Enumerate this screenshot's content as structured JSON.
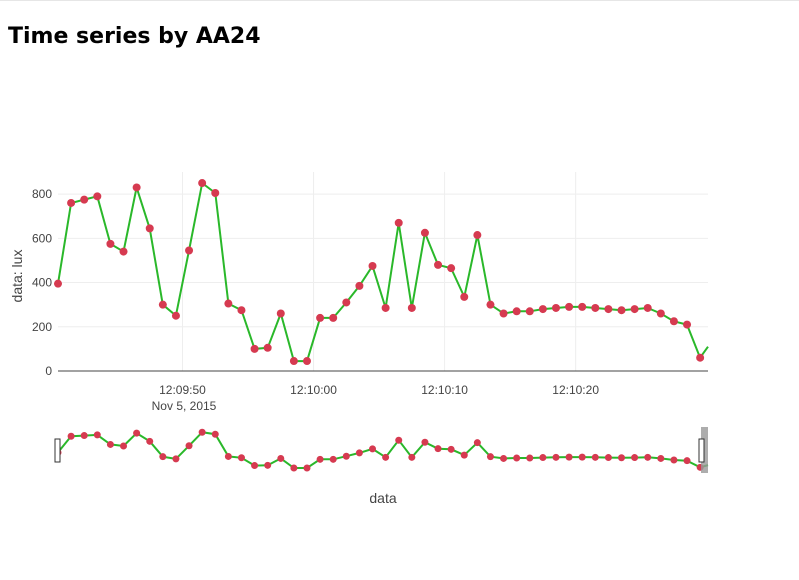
{
  "page": {
    "title": "Time series by AA24"
  },
  "chart_data": {
    "type": "line",
    "title": "",
    "xlabel": "data",
    "ylabel": "data: lux",
    "ylim": [
      0,
      900
    ],
    "x_range_seconds": [
      "12:09:40.5",
      "12:10:30.1"
    ],
    "x_date_label": "Nov 5, 2015",
    "x_ticks": [
      "12:09:50",
      "12:10:00",
      "12:10:10",
      "12:10:20"
    ],
    "y_ticks": [
      0,
      200,
      400,
      600,
      800
    ],
    "grid": true,
    "legend": "none",
    "range_slider": true,
    "line_color": "#2ab82a",
    "marker_color": "#d63a50",
    "x": [
      "2015-11-05 12:09:40.5",
      "2015-11-05 12:09:41.5",
      "2015-11-05 12:09:42.5",
      "2015-11-05 12:09:43.5",
      "2015-11-05 12:09:44.5",
      "2015-11-05 12:09:45.5",
      "2015-11-05 12:09:46.5",
      "2015-11-05 12:09:47.5",
      "2015-11-05 12:09:48.5",
      "2015-11-05 12:09:49.5",
      "2015-11-05 12:09:50.5",
      "2015-11-05 12:09:51.5",
      "2015-11-05 12:09:52.5",
      "2015-11-05 12:09:53.5",
      "2015-11-05 12:09:54.5",
      "2015-11-05 12:09:55.5",
      "2015-11-05 12:09:56.5",
      "2015-11-05 12:09:57.5",
      "2015-11-05 12:09:58.5",
      "2015-11-05 12:09:59.5",
      "2015-11-05 12:10:00.5",
      "2015-11-05 12:10:01.5",
      "2015-11-05 12:10:02.5",
      "2015-11-05 12:10:03.5",
      "2015-11-05 12:10:04.5",
      "2015-11-05 12:10:05.5",
      "2015-11-05 12:10:06.5",
      "2015-11-05 12:10:07.5",
      "2015-11-05 12:10:08.5",
      "2015-11-05 12:10:09.5",
      "2015-11-05 12:10:10.5",
      "2015-11-05 12:10:11.5",
      "2015-11-05 12:10:12.5",
      "2015-11-05 12:10:13.5",
      "2015-11-05 12:10:14.5",
      "2015-11-05 12:10:15.5",
      "2015-11-05 12:10:16.5",
      "2015-11-05 12:10:17.5",
      "2015-11-05 12:10:18.5",
      "2015-11-05 12:10:19.5",
      "2015-11-05 12:10:20.5",
      "2015-11-05 12:10:21.5",
      "2015-11-05 12:10:22.5",
      "2015-11-05 12:10:23.5",
      "2015-11-05 12:10:24.5",
      "2015-11-05 12:10:25.5",
      "2015-11-05 12:10:26.5",
      "2015-11-05 12:10:27.5",
      "2015-11-05 12:10:28.5",
      "2015-11-05 12:10:29.5"
    ],
    "values": [
      395,
      760,
      775,
      790,
      575,
      540,
      830,
      645,
      300,
      250,
      545,
      850,
      805,
      305,
      275,
      100,
      105,
      260,
      45,
      45,
      240,
      240,
      310,
      385,
      475,
      285,
      670,
      285,
      625,
      480,
      465,
      335,
      615,
      300,
      260,
      270,
      270,
      280,
      285,
      290,
      290,
      285,
      280,
      275,
      280,
      285,
      260,
      225,
      210,
      60
    ],
    "tail_value": 110
  }
}
